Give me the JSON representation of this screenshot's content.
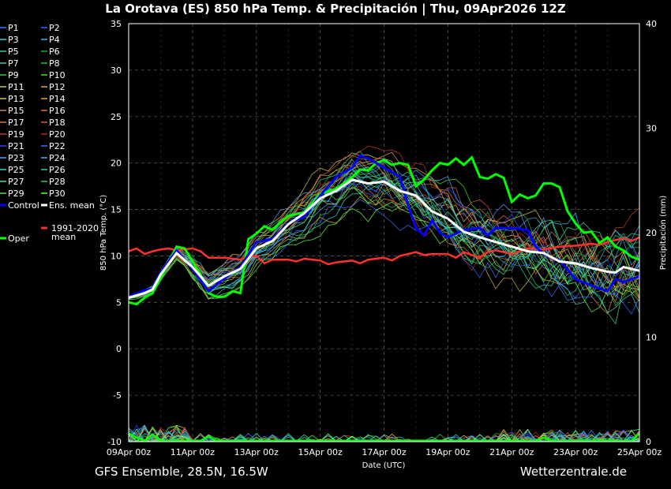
{
  "title": "La Orotava  (ES)  850 hPa Temp. & Precipitación | Thu, 09Apr2026 12Z",
  "footer": {
    "left": "GFS Ensemble, 28.5N, 16.5W",
    "right": "Wetterzentrale.de"
  },
  "chart_data": {
    "type": "line",
    "xlabel": "Date (UTC)",
    "ylabel": "850 hPa Temp. (°C)",
    "y2label": "Precipitación (mm)",
    "x_ticks": [
      "09Apr 00z",
      "11Apr 00z",
      "13Apr 00z",
      "15Apr 00z",
      "17Apr 00z",
      "19Apr 00z",
      "21Apr 00z",
      "23Apr 00z",
      "25Apr 00z"
    ],
    "x_range_hours": [
      0,
      384
    ],
    "ylim": [
      -10,
      35
    ],
    "y_ticks": [
      35,
      30,
      25,
      20,
      15,
      10,
      5,
      0,
      -5,
      -10
    ],
    "y2lim": [
      0,
      40
    ],
    "y2_ticks": [
      40,
      30,
      20,
      10,
      0
    ],
    "grid": true,
    "legend_position": "left",
    "legend": [
      [
        "P1",
        "P2"
      ],
      [
        "P3",
        "P4"
      ],
      [
        "P5",
        "P6"
      ],
      [
        "P7",
        "P8"
      ],
      [
        "P9",
        "P10"
      ],
      [
        "P11",
        "P12"
      ],
      [
        "P13",
        "P14"
      ],
      [
        "P15",
        "P16"
      ],
      [
        "P17",
        "P18"
      ],
      [
        "P19",
        "P20"
      ],
      [
        "P21",
        "P22"
      ],
      [
        "P23",
        "P24"
      ],
      [
        "P25",
        "P26"
      ],
      [
        "P27",
        "P28"
      ],
      [
        "P29",
        "P30"
      ],
      [
        "Control",
        "Ens. mean"
      ],
      [
        "",
        "1991-2020 mean"
      ],
      [
        "Oper",
        ""
      ]
    ],
    "colors": {
      "control": "#0000ff",
      "mean": "#ffffff",
      "climate": "#ff3030",
      "oper": "#00ff00",
      "members": [
        "#3a78ff",
        "#2a6cff",
        "#2fd0c8",
        "#36b7e8",
        "#30c9a0",
        "#1fa84a",
        "#3fcf80",
        "#20c050",
        "#2ecc40",
        "#44dd22",
        "#c8c840",
        "#d0b040",
        "#e0c050",
        "#e8a040",
        "#d08850",
        "#c87838",
        "#e07050",
        "#d06040",
        "#c03828",
        "#b02818",
        "#2a40ff",
        "#3a70ff",
        "#4aa0ff",
        "#50b0d8",
        "#30d0d0",
        "#30d0a0",
        "#40e090",
        "#30c070",
        "#50e050",
        "#60ff40"
      ]
    },
    "series": {
      "control": {
        "name": "Control",
        "values": [
          [
            0,
            5.6
          ],
          [
            12,
            6.3
          ],
          [
            18,
            6.5
          ],
          [
            24,
            8.2
          ],
          [
            36,
            10.6
          ],
          [
            48,
            8.6
          ],
          [
            60,
            6.2
          ],
          [
            72,
            7.6
          ],
          [
            84,
            8.8
          ],
          [
            96,
            11.5
          ],
          [
            108,
            11.8
          ],
          [
            120,
            13.5
          ],
          [
            132,
            14.2
          ],
          [
            144,
            16.5
          ],
          [
            156,
            18.5
          ],
          [
            168,
            19.5
          ],
          [
            174,
            20.8
          ],
          [
            180,
            20.5
          ],
          [
            192,
            19.5
          ],
          [
            204,
            18.5
          ],
          [
            210,
            15.5
          ],
          [
            216,
            13
          ],
          [
            222,
            12.2
          ],
          [
            228,
            13.8
          ],
          [
            234,
            12.5
          ],
          [
            240,
            12
          ],
          [
            252,
            12.8
          ],
          [
            264,
            13
          ],
          [
            270,
            12.2
          ],
          [
            276,
            13
          ],
          [
            288,
            13
          ],
          [
            300,
            12.8
          ],
          [
            306,
            11
          ],
          [
            312,
            10.2
          ],
          [
            324,
            9.5
          ],
          [
            336,
            7.5
          ],
          [
            348,
            6.8
          ],
          [
            354,
            6.5
          ],
          [
            360,
            6.2
          ],
          [
            366,
            7.5
          ],
          [
            372,
            7.2
          ],
          [
            384,
            7.8
          ]
        ]
      },
      "mean": {
        "name": "Ens. mean",
        "values": [
          [
            0,
            5.5
          ],
          [
            12,
            6
          ],
          [
            18,
            6.4
          ],
          [
            24,
            8
          ],
          [
            36,
            10.3
          ],
          [
            48,
            8.8
          ],
          [
            60,
            6.8
          ],
          [
            72,
            7.8
          ],
          [
            84,
            8.6
          ],
          [
            96,
            10.8
          ],
          [
            108,
            11.6
          ],
          [
            120,
            13.4
          ],
          [
            132,
            14.6
          ],
          [
            144,
            16.2
          ],
          [
            156,
            17
          ],
          [
            168,
            18.2
          ],
          [
            180,
            17.8
          ],
          [
            192,
            18
          ],
          [
            204,
            17
          ],
          [
            216,
            16.5
          ],
          [
            228,
            14.8
          ],
          [
            240,
            14
          ],
          [
            252,
            12.6
          ],
          [
            264,
            12
          ],
          [
            276,
            11.5
          ],
          [
            288,
            11
          ],
          [
            300,
            10.5
          ],
          [
            312,
            10.3
          ],
          [
            324,
            9.4
          ],
          [
            336,
            9.2
          ],
          [
            348,
            8.7
          ],
          [
            360,
            8.3
          ],
          [
            366,
            8.2
          ],
          [
            372,
            8.8
          ],
          [
            384,
            8.4
          ]
        ]
      },
      "climate": {
        "name": "1991-2020 mean",
        "values": [
          [
            0,
            10.5
          ],
          [
            6,
            10.8
          ],
          [
            12,
            10.2
          ],
          [
            18,
            10.5
          ],
          [
            24,
            10.7
          ],
          [
            30,
            10.8
          ],
          [
            36,
            10.6
          ],
          [
            42,
            10.7
          ],
          [
            48,
            10.8
          ],
          [
            54,
            10.5
          ],
          [
            60,
            9.8
          ],
          [
            72,
            9.8
          ],
          [
            84,
            9.6
          ],
          [
            90,
            9.9
          ],
          [
            96,
            10
          ],
          [
            102,
            9.2
          ],
          [
            108,
            9.6
          ],
          [
            120,
            9.6
          ],
          [
            126,
            9.4
          ],
          [
            132,
            9.7
          ],
          [
            144,
            9.5
          ],
          [
            150,
            9.1
          ],
          [
            156,
            9.3
          ],
          [
            168,
            9.5
          ],
          [
            174,
            9.2
          ],
          [
            180,
            9.6
          ],
          [
            192,
            9.8
          ],
          [
            198,
            9.5
          ],
          [
            204,
            10
          ],
          [
            216,
            10.4
          ],
          [
            222,
            10.1
          ],
          [
            228,
            10.2
          ],
          [
            240,
            10.2
          ],
          [
            246,
            9.8
          ],
          [
            252,
            10.4
          ],
          [
            264,
            9.8
          ],
          [
            270,
            10.4
          ],
          [
            276,
            10.6
          ],
          [
            288,
            10.2
          ],
          [
            300,
            10.8
          ],
          [
            312,
            10.7
          ],
          [
            324,
            11
          ],
          [
            336,
            11.1
          ],
          [
            348,
            11.3
          ],
          [
            354,
            11.2
          ],
          [
            360,
            11.5
          ],
          [
            366,
            11.7
          ],
          [
            372,
            11.9
          ],
          [
            378,
            11.6
          ],
          [
            384,
            12
          ]
        ]
      },
      "oper": {
        "name": "Oper",
        "values": [
          [
            0,
            5
          ],
          [
            6,
            4.8
          ],
          [
            12,
            5.5
          ],
          [
            18,
            6
          ],
          [
            24,
            7.6
          ],
          [
            36,
            11
          ],
          [
            42,
            10.8
          ],
          [
            48,
            9.4
          ],
          [
            54,
            8
          ],
          [
            60,
            6
          ],
          [
            66,
            5.6
          ],
          [
            72,
            5.6
          ],
          [
            78,
            6.2
          ],
          [
            84,
            6
          ],
          [
            90,
            11.8
          ],
          [
            96,
            12.4
          ],
          [
            102,
            13.2
          ],
          [
            108,
            12.8
          ],
          [
            114,
            13.6
          ],
          [
            120,
            14.3
          ],
          [
            132,
            14.7
          ],
          [
            144,
            16.7
          ],
          [
            156,
            17.2
          ],
          [
            168,
            18.5
          ],
          [
            174,
            19.3
          ],
          [
            180,
            19.2
          ],
          [
            186,
            20
          ],
          [
            192,
            20.3
          ],
          [
            198,
            19.8
          ],
          [
            204,
            20
          ],
          [
            210,
            19.8
          ],
          [
            216,
            17.5
          ],
          [
            222,
            18.2
          ],
          [
            228,
            19.2
          ],
          [
            234,
            20
          ],
          [
            240,
            19.8
          ],
          [
            246,
            20.5
          ],
          [
            252,
            19.8
          ],
          [
            258,
            20.6
          ],
          [
            264,
            18.5
          ],
          [
            270,
            18.3
          ],
          [
            276,
            18.8
          ],
          [
            282,
            18.4
          ],
          [
            288,
            15.8
          ],
          [
            294,
            16.6
          ],
          [
            300,
            16.2
          ],
          [
            306,
            16.5
          ],
          [
            312,
            17.8
          ],
          [
            318,
            17.8
          ],
          [
            324,
            17.4
          ],
          [
            330,
            14.8
          ],
          [
            336,
            13.5
          ],
          [
            342,
            12.5
          ],
          [
            348,
            12.6
          ],
          [
            354,
            11.4
          ],
          [
            360,
            12
          ],
          [
            366,
            11
          ],
          [
            372,
            10.6
          ],
          [
            378,
            9.9
          ],
          [
            384,
            9.6
          ]
        ]
      }
    }
  }
}
